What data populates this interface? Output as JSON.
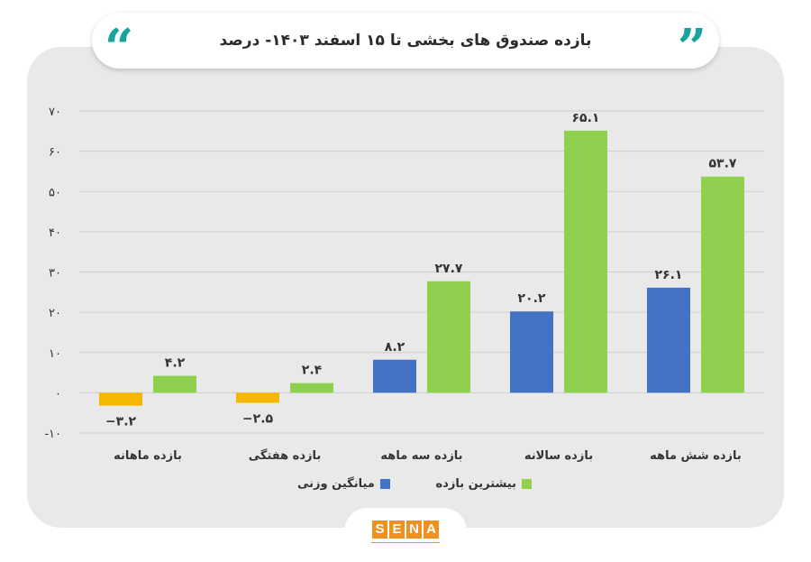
{
  "title": "بازده صندوق های بخشی تا ۱۵ اسفند ۱۴۰۳- درصد",
  "quote_glyph_left": "“",
  "quote_glyph_right": "”",
  "logo": {
    "letters": [
      "S",
      "E",
      "N",
      "A"
    ]
  },
  "colors": {
    "average_positive": "#4472c4",
    "average_negative": "#f5b800",
    "max": "#8fd14f",
    "quote": "#1aa39a",
    "logo": "#f0901e"
  },
  "chart_data": {
    "type": "bar",
    "title": "بازده صندوق های بخشی تا ۱۵ اسفند ۱۴۰۳- درصد",
    "categories": [
      "بازده ماهانه",
      "بازده هفتگی",
      "بازده سه ماهه",
      "بازده سالانه",
      "بازده شش ماهه"
    ],
    "series": [
      {
        "name": "میانگین وزنی",
        "values": [
          -3.2,
          -2.5,
          8.2,
          20.2,
          26.1
        ],
        "labels": [
          "−۳.۲",
          "−۲.۵",
          "۸.۲",
          "۲۰.۲",
          "۲۶.۱"
        ]
      },
      {
        "name": "بیشترین بازده",
        "values": [
          4.2,
          2.4,
          27.7,
          65.1,
          53.7
        ],
        "labels": [
          "۴.۲",
          "۲.۴",
          "۲۷.۷",
          "۶۵.۱",
          "۵۳.۷"
        ]
      }
    ],
    "yticks": [
      70,
      60,
      50,
      40,
      30,
      20,
      10,
      0,
      -10
    ],
    "ytick_labels": [
      "۷۰",
      "۶۰",
      "۵۰",
      "۴۰",
      "۳۰",
      "۲۰",
      "۱۰",
      "۰",
      "-۱۰"
    ],
    "ylim": [
      -10,
      70
    ],
    "grid": true,
    "legend_position": "bottom"
  }
}
